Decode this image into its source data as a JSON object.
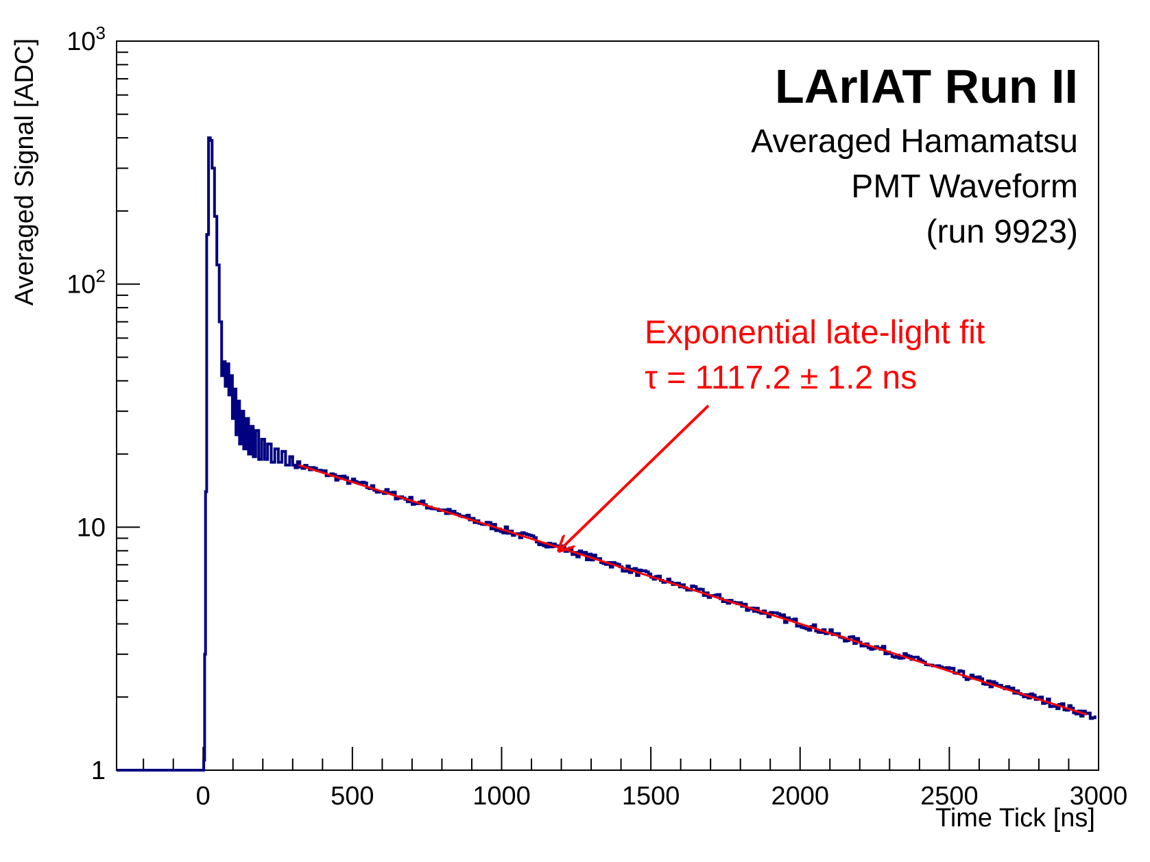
{
  "chart_data": {
    "type": "line",
    "title": "LArIAT Run II",
    "subtitle_lines": [
      "Averaged Hamamatsu",
      "PMT Waveform",
      "(run 9923)"
    ],
    "xlabel": "Time Tick [ns]",
    "ylabel": "Averaged Signal [ADC]",
    "xlim": [
      -290,
      3000
    ],
    "ylim": [
      1,
      1000
    ],
    "yscale": "log",
    "grid": false,
    "legend": "none",
    "x_ticks": [
      0,
      500,
      1000,
      1500,
      2000,
      2500,
      3000
    ],
    "x_tick_labels": [
      "0",
      "500",
      "1000",
      "1500",
      "2000",
      "2500",
      "3000"
    ],
    "y_tick_labels": [
      {
        "value": 1,
        "base": "1",
        "exp": ""
      },
      {
        "value": 10,
        "base": "10",
        "exp": ""
      },
      {
        "value": 100,
        "base": "10",
        "exp": "2"
      },
      {
        "value": 1000,
        "base": "10",
        "exp": "3"
      }
    ],
    "series": [
      {
        "color": "#000080",
        "points": [
          [
            -290,
            1
          ],
          [
            0,
            1
          ],
          [
            2,
            1.1
          ],
          [
            5,
            3
          ],
          [
            8,
            14
          ],
          [
            12,
            160
          ],
          [
            18,
            400
          ],
          [
            24,
            390
          ],
          [
            30,
            300
          ],
          [
            38,
            190
          ],
          [
            46,
            120
          ],
          [
            54,
            70
          ],
          [
            62,
            42
          ],
          [
            68,
            48
          ],
          [
            74,
            38
          ],
          [
            80,
            47
          ],
          [
            86,
            35
          ],
          [
            92,
            42
          ],
          [
            98,
            28
          ],
          [
            104,
            37
          ],
          [
            110,
            24
          ],
          [
            116,
            33
          ],
          [
            122,
            22
          ],
          [
            128,
            30
          ],
          [
            136,
            21
          ],
          [
            144,
            28
          ],
          [
            152,
            20
          ],
          [
            160,
            26
          ],
          [
            168,
            19.5
          ],
          [
            176,
            25
          ],
          [
            186,
            19
          ],
          [
            196,
            23
          ],
          [
            206,
            19
          ],
          [
            216,
            22
          ],
          [
            228,
            18.5
          ],
          [
            240,
            21
          ],
          [
            252,
            18.5
          ],
          [
            264,
            20.5
          ],
          [
            276,
            18
          ],
          [
            290,
            19.5
          ],
          [
            300,
            18
          ]
        ]
      },
      {
        "color": "#ff0000",
        "amplitude": 18,
        "tau_ns": 1117.2,
        "t_start": 320,
        "x_range": [
          320,
          2975
        ]
      }
    ],
    "annotation": {
      "line1": "Exponential late-light fit",
      "line2": "τ = 1117.2 ± 1.2 ns",
      "color": "#ff0000"
    }
  }
}
